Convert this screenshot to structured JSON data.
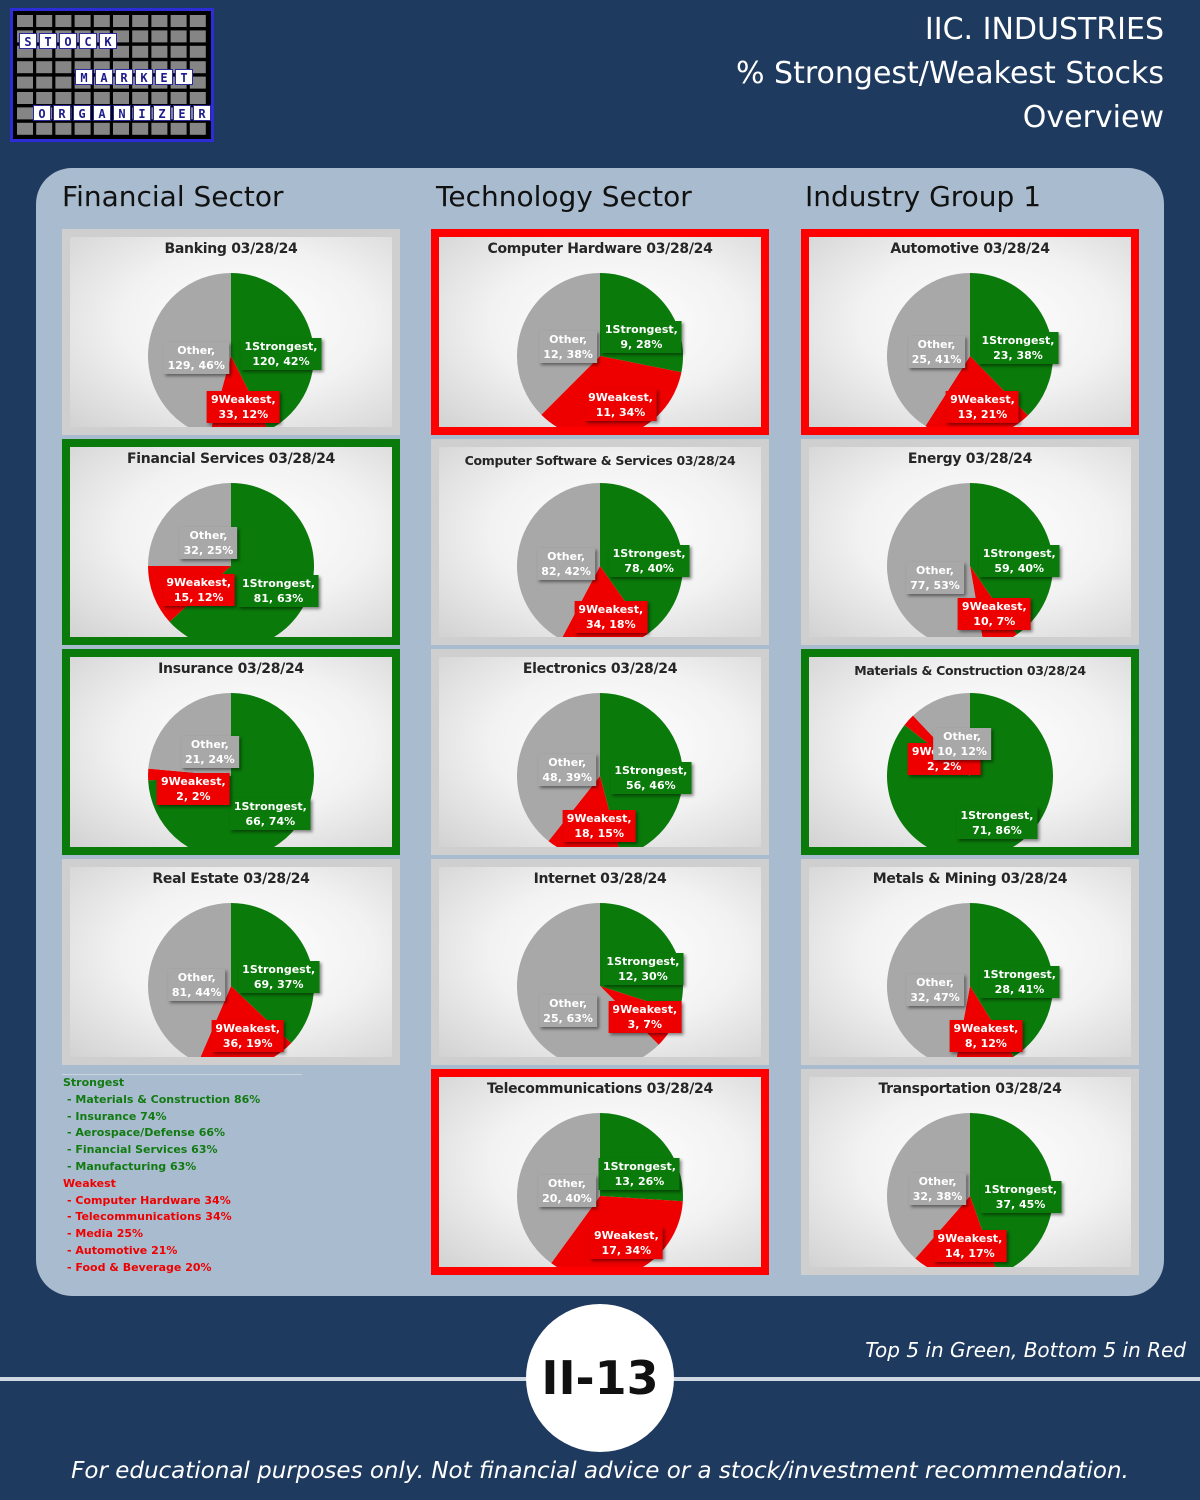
{
  "logo": {
    "rows": [
      "STOCK",
      "MARKET",
      "ORGANIZER"
    ]
  },
  "header": {
    "line1": "IIC. INDUSTRIES",
    "line2": "% Strongest/Weakest Stocks",
    "line3": "Overview"
  },
  "columns": [
    "Financial Sector",
    "Technology Sector",
    "Industry Group 1"
  ],
  "chart_data": [
    {
      "type": "pie",
      "title": "Banking 03/28/24",
      "highlight": "none",
      "slices": [
        {
          "name": "1Strongest",
          "value": 120,
          "pct": "42%"
        },
        {
          "name": "9Weakest",
          "value": 33,
          "pct": "12%"
        },
        {
          "name": "Other",
          "value": 129,
          "pct": "46%"
        }
      ]
    },
    {
      "type": "pie",
      "title": "Financial Services 03/28/24",
      "highlight": "green",
      "slices": [
        {
          "name": "1Strongest",
          "value": 81,
          "pct": "63%"
        },
        {
          "name": "9Weakest",
          "value": 15,
          "pct": "12%"
        },
        {
          "name": "Other",
          "value": 32,
          "pct": "25%"
        }
      ]
    },
    {
      "type": "pie",
      "title": "Insurance 03/28/24",
      "highlight": "green",
      "slices": [
        {
          "name": "1Strongest",
          "value": 66,
          "pct": "74%"
        },
        {
          "name": "9Weakest",
          "value": 2,
          "pct": "2%"
        },
        {
          "name": "Other",
          "value": 21,
          "pct": "24%"
        }
      ]
    },
    {
      "type": "pie",
      "title": "Real Estate 03/28/24",
      "highlight": "none",
      "slices": [
        {
          "name": "1Strongest",
          "value": 69,
          "pct": "37%"
        },
        {
          "name": "9Weakest",
          "value": 36,
          "pct": "19%"
        },
        {
          "name": "Other",
          "value": 81,
          "pct": "44%"
        }
      ]
    },
    {
      "type": "pie",
      "title": "Computer Hardware 03/28/24",
      "highlight": "red",
      "slices": [
        {
          "name": "1Strongest",
          "value": 9,
          "pct": "28%"
        },
        {
          "name": "9Weakest",
          "value": 11,
          "pct": "34%"
        },
        {
          "name": "Other",
          "value": 12,
          "pct": "38%"
        }
      ]
    },
    {
      "type": "pie",
      "title": "Computer Software & Services 03/28/24",
      "highlight": "none",
      "slices": [
        {
          "name": "1Strongest",
          "value": 78,
          "pct": "40%"
        },
        {
          "name": "9Weakest",
          "value": 34,
          "pct": "18%"
        },
        {
          "name": "Other",
          "value": 82,
          "pct": "42%"
        }
      ]
    },
    {
      "type": "pie",
      "title": "Electronics 03/28/24",
      "highlight": "none",
      "slices": [
        {
          "name": "1Strongest",
          "value": 56,
          "pct": "46%"
        },
        {
          "name": "9Weakest",
          "value": 18,
          "pct": "15%"
        },
        {
          "name": "Other",
          "value": 48,
          "pct": "39%"
        }
      ]
    },
    {
      "type": "pie",
      "title": "Internet 03/28/24",
      "highlight": "none",
      "slices": [
        {
          "name": "1Strongest",
          "value": 12,
          "pct": "30%"
        },
        {
          "name": "9Weakest",
          "value": 3,
          "pct": "7%"
        },
        {
          "name": "Other",
          "value": 25,
          "pct": "63%"
        }
      ]
    },
    {
      "type": "pie",
      "title": "Telecommunications 03/28/24",
      "highlight": "red",
      "slices": [
        {
          "name": "1Strongest",
          "value": 13,
          "pct": "26%"
        },
        {
          "name": "9Weakest",
          "value": 17,
          "pct": "34%"
        },
        {
          "name": "Other",
          "value": 20,
          "pct": "40%"
        }
      ]
    },
    {
      "type": "pie",
      "title": "Automotive 03/28/24",
      "highlight": "red",
      "slices": [
        {
          "name": "1Strongest",
          "value": 23,
          "pct": "38%"
        },
        {
          "name": "9Weakest",
          "value": 13,
          "pct": "21%"
        },
        {
          "name": "Other",
          "value": 25,
          "pct": "41%"
        }
      ]
    },
    {
      "type": "pie",
      "title": "Energy 03/28/24",
      "highlight": "none",
      "slices": [
        {
          "name": "1Strongest",
          "value": 59,
          "pct": "40%"
        },
        {
          "name": "9Weakest",
          "value": 10,
          "pct": "7%"
        },
        {
          "name": "Other",
          "value": 77,
          "pct": "53%"
        }
      ]
    },
    {
      "type": "pie",
      "title": "Materials & Construction 03/28/24",
      "highlight": "green",
      "slices": [
        {
          "name": "1Strongest",
          "value": 71,
          "pct": "86%"
        },
        {
          "name": "9Weakest",
          "value": 2,
          "pct": "2%"
        },
        {
          "name": "Other",
          "value": 10,
          "pct": "12%"
        }
      ]
    },
    {
      "type": "pie",
      "title": "Metals & Mining 03/28/24",
      "highlight": "none",
      "slices": [
        {
          "name": "1Strongest",
          "value": 28,
          "pct": "41%"
        },
        {
          "name": "9Weakest",
          "value": 8,
          "pct": "12%"
        },
        {
          "name": "Other",
          "value": 32,
          "pct": "47%"
        }
      ]
    },
    {
      "type": "pie",
      "title": "Transportation 03/28/24",
      "highlight": "none",
      "slices": [
        {
          "name": "1Strongest",
          "value": 37,
          "pct": "45%"
        },
        {
          "name": "9Weakest",
          "value": 14,
          "pct": "17%"
        },
        {
          "name": "Other",
          "value": 32,
          "pct": "38%"
        }
      ]
    }
  ],
  "colors": {
    "strongest": "#0a7a0a",
    "weakest": "#ee0000",
    "other": "#a8a8a8"
  },
  "legend": {
    "strongest_heading": "Strongest",
    "strongest": [
      " - Materials & Construction 86%",
      " - Insurance 74%",
      " - Aerospace/Defense 66%",
      " - Financial Services 63%",
      " - Manufacturing 63%"
    ],
    "weakest_heading": "Weakest",
    "weakest": [
      " - Computer Hardware 34%",
      " - Telecommunications 34%",
      " - Media 25%",
      " - Automotive 21%",
      " - Food & Beverage 20%"
    ]
  },
  "note": "Top 5 in Green, Bottom 5 in Red",
  "page_badge": "II-13",
  "footer": "For educational purposes only. Not financial advice or a stock/investment recommendation."
}
